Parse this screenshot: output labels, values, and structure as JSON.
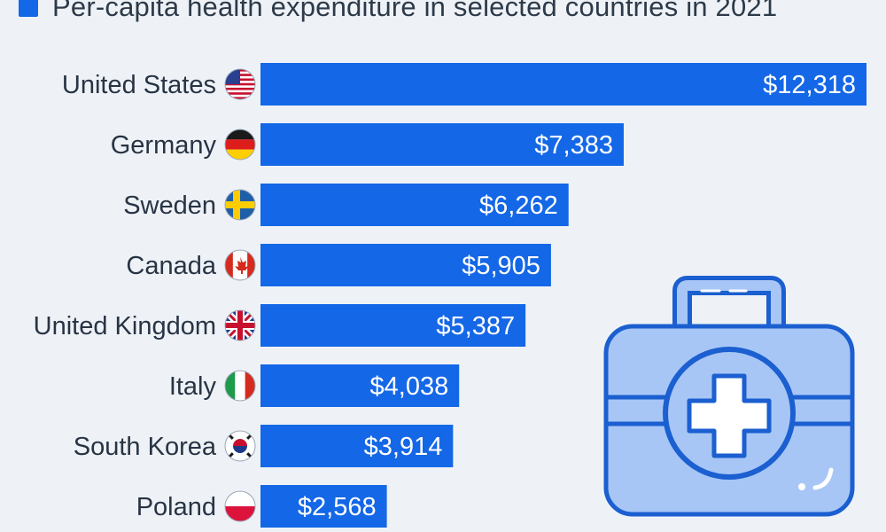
{
  "chart_data": {
    "type": "bar",
    "orientation": "horizontal",
    "title": "Per-capita health expenditure in selected countries in 2021",
    "categories": [
      "United States",
      "Germany",
      "Sweden",
      "Canada",
      "United Kingdom",
      "Italy",
      "South Korea",
      "Poland"
    ],
    "values": [
      12318,
      7383,
      6262,
      5905,
      5387,
      4038,
      3914,
      2568
    ],
    "value_labels": [
      "$12,318",
      "$7,383",
      "$6,262",
      "$5,905",
      "$5,387",
      "$4,038",
      "$3,914",
      "$2,568"
    ],
    "flag_icons": [
      "us-flag-icon",
      "germany-flag-icon",
      "sweden-flag-icon",
      "canada-flag-icon",
      "uk-flag-icon",
      "italy-flag-icon",
      "south-korea-flag-icon",
      "poland-flag-icon"
    ],
    "xlabel": "",
    "ylabel": "",
    "xlim": [
      0,
      12318
    ],
    "grid": false,
    "legend": "top-left",
    "bar_color": "#1467e6"
  },
  "decoration": {
    "icon": "first-aid-kit-icon",
    "fill_color": "#a7c6f6",
    "stroke_color": "#1b5fd0"
  },
  "background_color": "#eef2f7"
}
